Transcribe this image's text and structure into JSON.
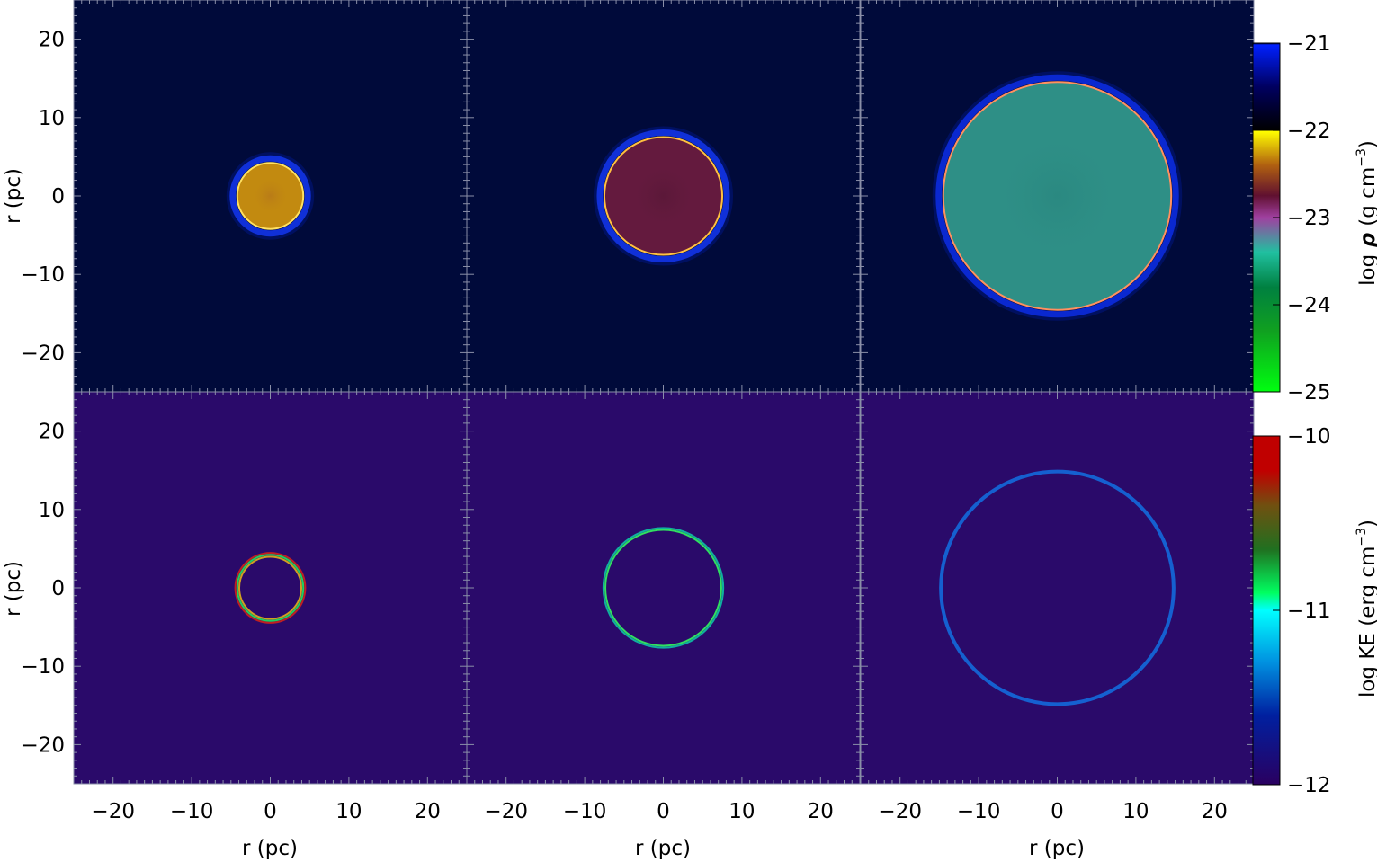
{
  "chart_data": {
    "type": "heatmap",
    "layout": "2 rows x 3 columns of image panels sharing axes",
    "xlabel": "r (pc)",
    "ylabel": "r (pc)",
    "xlim": [
      -25,
      25
    ],
    "ylim": [
      -25,
      25
    ],
    "x_ticks": [
      -20,
      -10,
      0,
      10,
      20
    ],
    "y_ticks": [
      -20,
      -10,
      0,
      10,
      20
    ],
    "tick_labels": [
      "−20",
      "−10",
      "0",
      "10",
      "20"
    ],
    "rows": [
      {
        "quantity": "density",
        "colorbar_label_parts": [
          "log ",
          "ρ",
          " (g cm",
          "−3",
          ")"
        ],
        "colorbar_range": [
          -25,
          -21
        ],
        "colorbar_ticks": [
          -21,
          -22,
          -23,
          -24,
          -25
        ],
        "colorbar_tick_labels": [
          "−21",
          "−22",
          "−23",
          "−24",
          "−25"
        ],
        "colormap_stops": [
          {
            "value": -25,
            "color": "#00ff10"
          },
          {
            "value": -24.3,
            "color": "#10a020"
          },
          {
            "value": -23.8,
            "color": "#008040"
          },
          {
            "value": -23.4,
            "color": "#20c0a0"
          },
          {
            "value": -23.0,
            "color": "#a040a0"
          },
          {
            "value": -22.75,
            "color": "#601030"
          },
          {
            "value": -22.4,
            "color": "#b06010"
          },
          {
            "value": -22.01,
            "color": "#ffff00"
          },
          {
            "value": -22.0,
            "color": "#000000"
          },
          {
            "value": -21.5,
            "color": "#000060"
          },
          {
            "value": -21.02,
            "color": "#0020ff"
          },
          {
            "value": -21.0,
            "color": "#000000"
          }
        ],
        "background_color": "#000a3a",
        "panels": [
          {
            "bubble_radius_pc": 4.2,
            "interior_color": "#c28a10",
            "core_color": "#b87a18",
            "shell_color": "#1030d8",
            "rim_color": "#ffe060"
          },
          {
            "bubble_radius_pc": 7.5,
            "interior_color": "#641a3e",
            "core_color": "#5a1838",
            "shell_color": "#1030d8",
            "rim_color": "#ffc040"
          },
          {
            "bubble_radius_pc": 14.5,
            "interior_color": "#2e8f86",
            "core_color": "#2a8880",
            "shell_color": "#0a28d0",
            "rim_color": "#ff9060"
          }
        ]
      },
      {
        "quantity": "kinetic energy",
        "colorbar_label_parts": [
          "log KE (erg cm",
          "−3",
          ")"
        ],
        "colorbar_range": [
          -12,
          -10
        ],
        "colorbar_ticks": [
          -10,
          -11,
          -12
        ],
        "colorbar_tick_labels": [
          "−10",
          "−11",
          "−12"
        ],
        "colormap_stops": [
          {
            "value": -12,
            "color": "#2a0060"
          },
          {
            "value": -11.6,
            "color": "#0020a0"
          },
          {
            "value": -11.3,
            "color": "#0090e0"
          },
          {
            "value": -11.0,
            "color": "#00ffff"
          },
          {
            "value": -10.9,
            "color": "#00ff60"
          },
          {
            "value": -10.65,
            "color": "#207020"
          },
          {
            "value": -10.4,
            "color": "#705010"
          },
          {
            "value": -10.2,
            "color": "#c00000"
          },
          {
            "value": -10,
            "color": "#c00000"
          }
        ],
        "background_color": "#2a0a6a",
        "panels": [
          {
            "ring_radius_pc": 4.2,
            "ring_colors": [
              "#c02020",
              "#20d060",
              "#d0a020"
            ]
          },
          {
            "ring_radius_pc": 7.5,
            "ring_colors": [
              "#10b0a0",
              "#30e060"
            ]
          },
          {
            "ring_radius_pc": 14.8,
            "ring_colors": [
              "#1560d0"
            ]
          }
        ]
      }
    ]
  }
}
